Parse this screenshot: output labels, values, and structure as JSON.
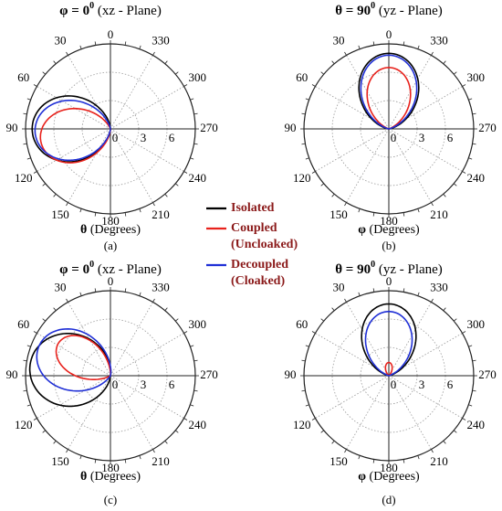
{
  "chart_data": [
    {
      "type": "polar-line",
      "panel_label": "(a)",
      "title_symbol": "φ",
      "title_rest": " = 0",
      "title_sup": "0",
      "title_plane": " (xz - Plane)",
      "axis_symbol": "θ",
      "axis_label": " (Degrees)",
      "angle_ticks": [
        "0",
        "30",
        "60",
        "90",
        "120",
        "150",
        "180",
        "210",
        "240",
        "270",
        "300",
        "330"
      ],
      "radial_ticks": [
        "0",
        "3",
        "6"
      ],
      "rmax": 9,
      "series": [
        {
          "key": "isolated",
          "color": "#000000",
          "lobe_dir_deg": 90,
          "lobe_max": 8.3,
          "lobe_width_deg": 68
        },
        {
          "key": "coupled",
          "color": "#e8221c",
          "lobe_dir_deg": 100,
          "lobe_max": 7.5,
          "lobe_width_deg": 58
        },
        {
          "key": "decoupled",
          "color": "#1f2fd6",
          "lobe_dir_deg": 92,
          "lobe_max": 8.0,
          "lobe_width_deg": 62
        }
      ]
    },
    {
      "type": "polar-line",
      "panel_label": "(b)",
      "title_symbol": "θ",
      "title_rest": " = 90",
      "title_sup": "0",
      "title_plane": " (yz - Plane)",
      "axis_symbol": "φ",
      "axis_label": " (Degrees)",
      "angle_ticks": [
        "0",
        "30",
        "60",
        "90",
        "120",
        "150",
        "180",
        "210",
        "240",
        "270",
        "300",
        "330"
      ],
      "radial_ticks": [
        "0",
        "3",
        "6"
      ],
      "rmax": 9,
      "series": [
        {
          "key": "isolated",
          "color": "#000000",
          "lobe_dir_deg": 0,
          "lobe_max": 8.0,
          "lobe_width_deg": 62
        },
        {
          "key": "coupled",
          "color": "#e8221c",
          "lobe_dir_deg": 0,
          "lobe_max": 6.5,
          "lobe_width_deg": 52
        },
        {
          "key": "decoupled",
          "color": "#1f2fd6",
          "lobe_dir_deg": 0,
          "lobe_max": 7.8,
          "lobe_width_deg": 58
        }
      ]
    },
    {
      "type": "polar-line",
      "panel_label": "(c)",
      "title_symbol": "φ",
      "title_rest": " = 0",
      "title_sup": "0",
      "title_plane": " (xz - Plane)",
      "axis_symbol": "θ",
      "axis_label": " (Degrees)",
      "angle_ticks": [
        "0",
        "30",
        "60",
        "90",
        "120",
        "150",
        "180",
        "210",
        "240",
        "270",
        "300",
        "330"
      ],
      "radial_ticks": [
        "0",
        "3",
        "6"
      ],
      "rmax": 9,
      "series": [
        {
          "key": "isolated",
          "color": "#000000",
          "lobe_dir_deg": 82,
          "lobe_max": 8.6,
          "lobe_width_deg": 75
        },
        {
          "key": "coupled",
          "color": "#e8221c",
          "lobe_dir_deg": 58,
          "lobe_max": 6.5,
          "lobe_width_deg": 42
        },
        {
          "key": "decoupled",
          "color": "#1f2fd6",
          "lobe_dir_deg": 68,
          "lobe_max": 8.2,
          "lobe_width_deg": 60
        }
      ]
    },
    {
      "type": "polar-line",
      "panel_label": "(d)",
      "title_symbol": "θ",
      "title_rest": " = 90",
      "title_sup": "0",
      "title_plane": " (yz - Plane)",
      "axis_symbol": "φ",
      "axis_label": " (Degrees)",
      "angle_ticks": [
        "0",
        "30",
        "60",
        "90",
        "120",
        "150",
        "180",
        "210",
        "240",
        "270",
        "300",
        "330"
      ],
      "radial_ticks": [
        "0",
        "3",
        "6"
      ],
      "rmax": 9,
      "series": [
        {
          "key": "isolated",
          "color": "#000000",
          "lobe_dir_deg": 0,
          "lobe_max": 7.6,
          "lobe_width_deg": 58
        },
        {
          "key": "coupled",
          "color": "#e8221c",
          "lobe_dir_deg": 0,
          "lobe_max": 1.4,
          "lobe_width_deg": 30
        },
        {
          "key": "decoupled",
          "color": "#1f2fd6",
          "lobe_dir_deg": 0,
          "lobe_max": 6.8,
          "lobe_width_deg": 54
        }
      ]
    }
  ],
  "legend": {
    "items": [
      {
        "key": "isolated",
        "color": "#000000",
        "lines": [
          "Isolated"
        ]
      },
      {
        "key": "coupled",
        "color": "#e8221c",
        "lines": [
          "Coupled",
          "(Uncloaked)"
        ]
      },
      {
        "key": "decoupled",
        "color": "#1f2fd6",
        "lines": [
          "Decoupled",
          "(Cloaked)"
        ]
      }
    ]
  }
}
